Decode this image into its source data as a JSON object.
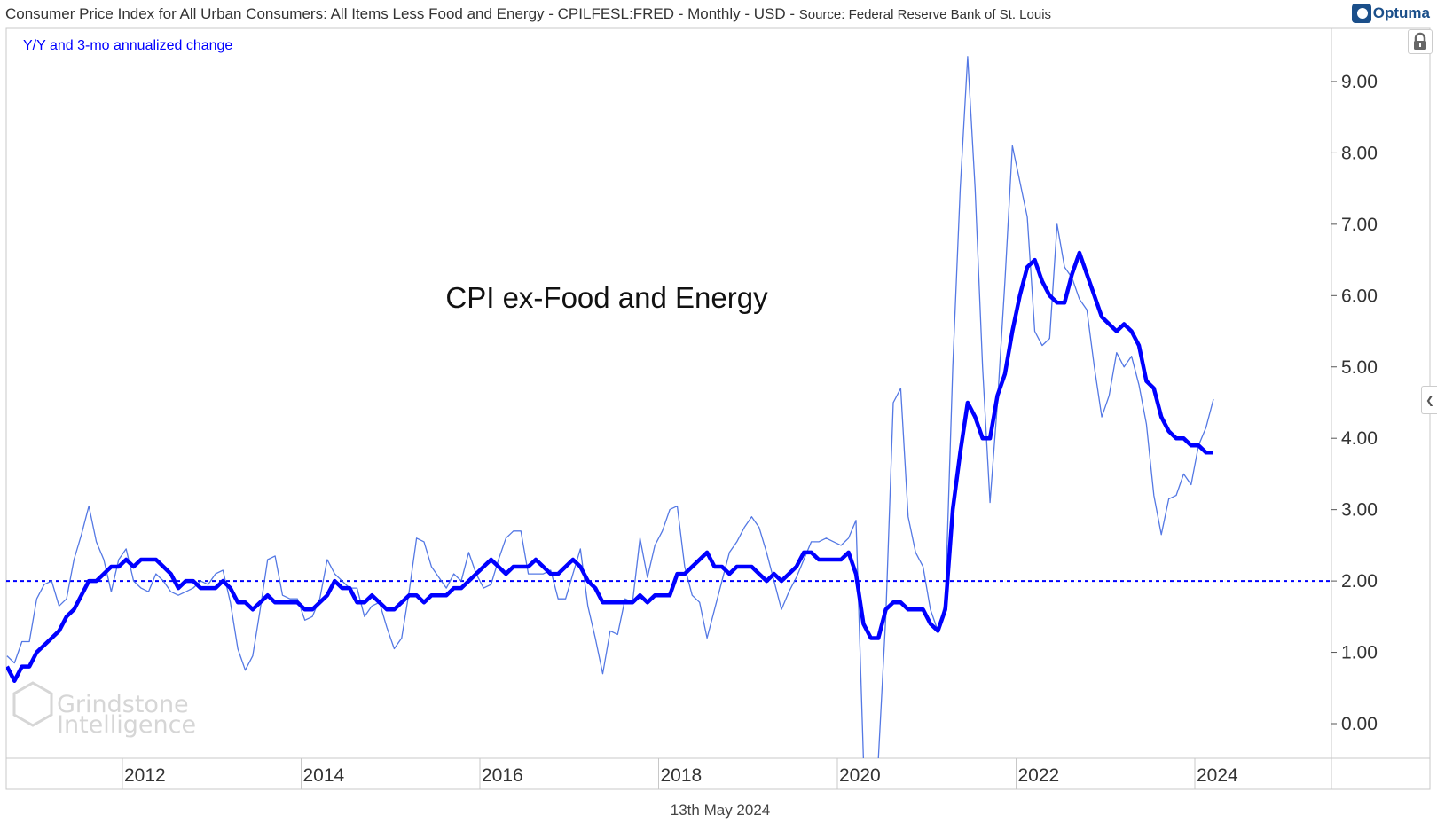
{
  "header": {
    "title": "Consumer Price Index for All Urban Consumers: All Items Less Food and Energy - CPILFESL:FRED - Monthly - USD - ",
    "source": "Source: Federal Reserve Bank of St. Louis",
    "logo": "Optuma"
  },
  "footer": {
    "date": "13th May 2024"
  },
  "watermark": {
    "line1": "Grindstone",
    "line2": "Intelligence"
  },
  "icons": {
    "lock": "lock-icon",
    "collapse": "chevron-left-icon"
  },
  "chart_data": {
    "type": "line",
    "title": "",
    "subtitle": "Y/Y and 3-mo annualized change",
    "annotation": "CPI ex-Food and Energy",
    "x_start": "2010-09",
    "x_end": "2024-03",
    "frequency": "monthly",
    "x_ticks": [
      "2012",
      "2014",
      "2016",
      "2018",
      "2020",
      "2022",
      "2024"
    ],
    "y_ticks": [
      "0.00",
      "1.00",
      "2.00",
      "3.00",
      "4.00",
      "5.00",
      "6.00",
      "7.00",
      "8.00",
      "9.00"
    ],
    "ylim": [
      -0.5,
      9.9
    ],
    "y_axis_side": "right",
    "grid": false,
    "reference_line": {
      "value": 2.0,
      "style": "dotted",
      "color": "#0000ff"
    },
    "colors": {
      "yoy": "#0000ff",
      "three_month": "#4169e1"
    },
    "series": [
      {
        "key": "yoy",
        "values": [
          0.8,
          0.6,
          0.8,
          0.8,
          1.0,
          1.1,
          1.2,
          1.3,
          1.5,
          1.6,
          1.8,
          2.0,
          2.0,
          2.1,
          2.2,
          2.2,
          2.3,
          2.2,
          2.3,
          2.3,
          2.3,
          2.2,
          2.1,
          1.9,
          2.0,
          2.0,
          1.9,
          1.9,
          1.9,
          2.0,
          1.9,
          1.7,
          1.7,
          1.6,
          1.7,
          1.8,
          1.7,
          1.7,
          1.7,
          1.7,
          1.6,
          1.6,
          1.7,
          1.8,
          2.0,
          1.9,
          1.9,
          1.7,
          1.7,
          1.8,
          1.7,
          1.6,
          1.6,
          1.7,
          1.8,
          1.8,
          1.7,
          1.8,
          1.8,
          1.8,
          1.9,
          1.9,
          2.0,
          2.1,
          2.2,
          2.3,
          2.2,
          2.1,
          2.2,
          2.2,
          2.2,
          2.3,
          2.2,
          2.1,
          2.1,
          2.2,
          2.3,
          2.2,
          2.0,
          1.9,
          1.7,
          1.7,
          1.7,
          1.7,
          1.7,
          1.8,
          1.7,
          1.8,
          1.8,
          1.8,
          2.1,
          2.1,
          2.2,
          2.3,
          2.4,
          2.2,
          2.2,
          2.1,
          2.2,
          2.2,
          2.2,
          2.1,
          2.0,
          2.1,
          2.0,
          2.1,
          2.2,
          2.4,
          2.4,
          2.3,
          2.3,
          2.3,
          2.3,
          2.4,
          2.1,
          1.4,
          1.2,
          1.2,
          1.6,
          1.7,
          1.7,
          1.6,
          1.6,
          1.6,
          1.4,
          1.3,
          1.6,
          3.0,
          3.8,
          4.5,
          4.3,
          4.0,
          4.0,
          4.6,
          4.9,
          5.5,
          6.0,
          6.4,
          6.5,
          6.2,
          6.0,
          5.9,
          5.9,
          6.3,
          6.6,
          6.3,
          6.0,
          5.7,
          5.6,
          5.5,
          5.6,
          5.5,
          5.3,
          4.8,
          4.7,
          4.3,
          4.1,
          4.0,
          4.0,
          3.9,
          3.9,
          3.8,
          3.8
        ]
      },
      {
        "key": "three_month",
        "values": [
          0.95,
          0.85,
          1.15,
          1.15,
          1.75,
          1.95,
          2.0,
          1.65,
          1.75,
          2.3,
          2.65,
          3.05,
          2.55,
          2.3,
          1.85,
          2.3,
          2.45,
          2.0,
          1.9,
          1.85,
          2.1,
          2.0,
          1.85,
          1.8,
          1.85,
          1.9,
          2.0,
          1.95,
          2.1,
          2.15,
          1.7,
          1.05,
          0.75,
          0.95,
          1.6,
          2.3,
          2.35,
          1.8,
          1.75,
          1.75,
          1.45,
          1.5,
          1.75,
          2.3,
          2.1,
          2.0,
          1.9,
          1.9,
          1.5,
          1.65,
          1.7,
          1.35,
          1.05,
          1.2,
          1.85,
          2.6,
          2.55,
          2.2,
          2.05,
          1.9,
          2.1,
          2.0,
          2.4,
          2.1,
          1.9,
          1.95,
          2.3,
          2.6,
          2.7,
          2.7,
          2.1,
          2.1,
          2.1,
          2.15,
          1.75,
          1.75,
          2.1,
          2.45,
          1.65,
          1.2,
          0.7,
          1.3,
          1.25,
          1.75,
          1.7,
          2.6,
          2.05,
          2.5,
          2.7,
          3.0,
          3.05,
          2.2,
          1.8,
          1.7,
          1.2,
          1.6,
          2.0,
          2.4,
          2.55,
          2.75,
          2.9,
          2.75,
          2.4,
          2.0,
          1.6,
          1.85,
          2.05,
          2.3,
          2.55,
          2.55,
          2.6,
          2.55,
          2.5,
          2.6,
          2.85,
          -0.5,
          -1.5,
          -0.5,
          1.5,
          4.5,
          4.7,
          2.9,
          2.4,
          2.2,
          1.6,
          1.3,
          1.7,
          5.0,
          7.5,
          9.35,
          7.5,
          5.0,
          3.1,
          4.5,
          6.2,
          8.1,
          7.6,
          7.1,
          5.5,
          5.3,
          5.4,
          7.0,
          6.4,
          6.25,
          5.95,
          5.8,
          5.0,
          4.3,
          4.6,
          5.2,
          5.0,
          5.15,
          4.75,
          4.2,
          3.2,
          2.65,
          3.15,
          3.2,
          3.5,
          3.35,
          3.9,
          4.15,
          4.55
        ]
      }
    ]
  }
}
